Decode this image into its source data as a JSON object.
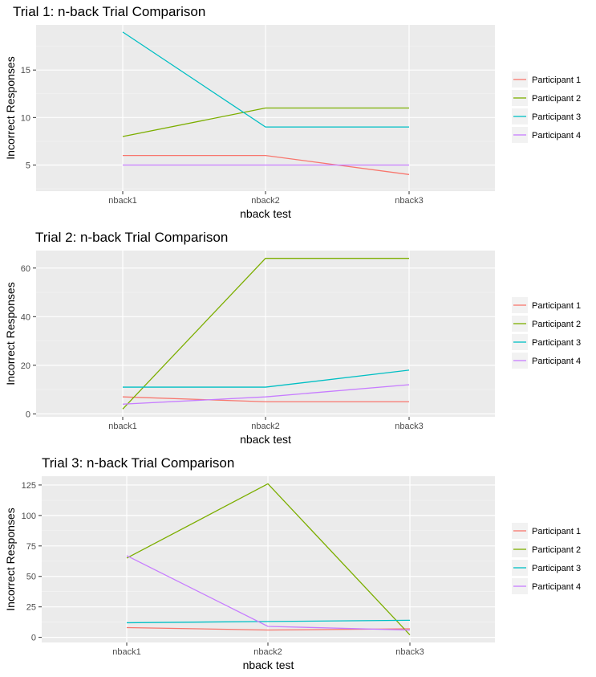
{
  "chart_data": [
    {
      "type": "line",
      "title": "Trial 1: n-back Trial Comparison",
      "xlabel": "nback test",
      "ylabel": "Incorrect Responses",
      "categories": [
        "nback1",
        "nback2",
        "nback3"
      ],
      "yticks": [
        5,
        10,
        15
      ],
      "ylim": [
        2.25,
        19.75
      ],
      "grid": true,
      "legend_position": "right",
      "series": [
        {
          "name": "Participant 1",
          "color": "#F8766D",
          "values": [
            6,
            6,
            4
          ]
        },
        {
          "name": "Participant 2",
          "color": "#7CAE00",
          "values": [
            8,
            11,
            11
          ]
        },
        {
          "name": "Participant 3",
          "color": "#00BFC4",
          "values": [
            19,
            9,
            9
          ]
        },
        {
          "name": "Participant 4",
          "color": "#C77CFF",
          "values": [
            5,
            5,
            5
          ]
        }
      ]
    },
    {
      "type": "line",
      "title": "Trial 2: n-back Trial Comparison",
      "xlabel": "nback test",
      "ylabel": "Incorrect Responses",
      "categories": [
        "nback1",
        "nback2",
        "nback3"
      ],
      "yticks": [
        0,
        20,
        40,
        60
      ],
      "ylim": [
        -1.2,
        67.2
      ],
      "grid": true,
      "legend_position": "right",
      "series": [
        {
          "name": "Participant 1",
          "color": "#F8766D",
          "values": [
            7,
            5,
            5
          ]
        },
        {
          "name": "Participant 2",
          "color": "#7CAE00",
          "values": [
            2,
            64,
            64
          ]
        },
        {
          "name": "Participant 3",
          "color": "#00BFC4",
          "values": [
            11,
            11,
            18
          ]
        },
        {
          "name": "Participant 4",
          "color": "#C77CFF",
          "values": [
            4,
            7,
            12
          ]
        }
      ]
    },
    {
      "type": "line",
      "title": "Trial 3: n-back Trial Comparison",
      "xlabel": "nback test",
      "ylabel": "Incorrect Responses",
      "categories": [
        "nback1",
        "nback2",
        "nback3"
      ],
      "yticks": [
        0,
        25,
        50,
        75,
        100,
        125
      ],
      "ylim": [
        -4.2,
        132.2
      ],
      "grid": true,
      "legend_position": "right",
      "series": [
        {
          "name": "Participant 1",
          "color": "#F8766D",
          "values": [
            8,
            6,
            7
          ]
        },
        {
          "name": "Participant 2",
          "color": "#7CAE00",
          "values": [
            65,
            126,
            2
          ]
        },
        {
          "name": "Participant 3",
          "color": "#00BFC4",
          "values": [
            12,
            13,
            14
          ]
        },
        {
          "name": "Participant 4",
          "color": "#C77CFF",
          "values": [
            67,
            9,
            6
          ]
        }
      ]
    }
  ]
}
